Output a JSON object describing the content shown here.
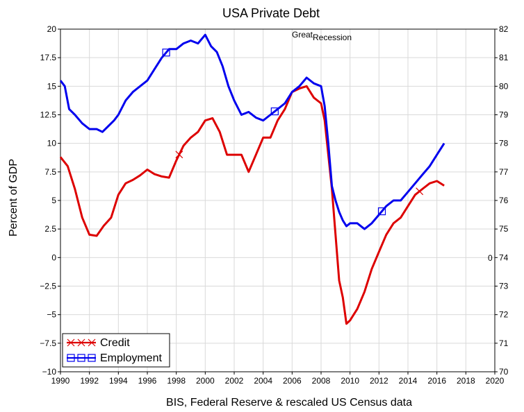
{
  "chart_data": {
    "type": "line",
    "title": "USA Private Debt",
    "ylabel": "Percent of GDP",
    "xlabel": "BIS, Federal Reserve & rescaled US Census data",
    "annotations": [
      "Great",
      "Recession",
      "0"
    ],
    "xlim": [
      1990,
      2020
    ],
    "ylim": [
      -10,
      20
    ],
    "y2lim": [
      70,
      82
    ],
    "x_ticks": [
      "1990",
      "1992",
      "1994",
      "1996",
      "1998",
      "2000",
      "2002",
      "2004",
      "2006",
      "2008",
      "2010",
      "2012",
      "2014",
      "2016",
      "2018",
      "2020"
    ],
    "y_ticks": [
      "20",
      "17.5",
      "15",
      "12.5",
      "10",
      "7.5",
      "5",
      "2.5",
      "0",
      "−2.5",
      "−5",
      "−7.5",
      "−10"
    ],
    "y2_ticks": [
      "82",
      "81",
      "80",
      "79",
      "78",
      "77",
      "76",
      "75",
      "74",
      "73",
      "72",
      "71",
      "70"
    ],
    "grid": true,
    "legend_position": "bottom-left",
    "series": [
      {
        "name": "Credit",
        "axis": "left",
        "color": "#dd0000",
        "marker": "x",
        "x": [
          1990.0,
          1990.5,
          1991.0,
          1991.5,
          1992.0,
          1992.5,
          1993.0,
          1993.5,
          1994.0,
          1994.5,
          1995.0,
          1995.5,
          1996.0,
          1996.5,
          1997.0,
          1997.5,
          1998.0,
          1998.5,
          1999.0,
          1999.5,
          2000.0,
          2000.5,
          2001.0,
          2001.5,
          2002.0,
          2002.5,
          2003.0,
          2003.5,
          2004.0,
          2004.5,
          2005.0,
          2005.5,
          2006.0,
          2006.5,
          2007.0,
          2007.5,
          2008.0,
          2008.25,
          2008.5,
          2008.75,
          2009.0,
          2009.25,
          2009.5,
          2009.75,
          2010.0,
          2010.5,
          2011.0,
          2011.5,
          2012.0,
          2012.5,
          2013.0,
          2013.5,
          2014.0,
          2014.5,
          2015.0,
          2015.5,
          2016.0,
          2016.5
        ],
        "values": [
          8.8,
          8.0,
          6.0,
          3.5,
          2.0,
          1.9,
          2.8,
          3.5,
          5.5,
          6.5,
          6.8,
          7.2,
          7.7,
          7.3,
          7.1,
          7.0,
          8.5,
          9.8,
          10.5,
          11.0,
          12.0,
          12.2,
          11.0,
          9.0,
          9.0,
          9.0,
          7.5,
          9.0,
          10.5,
          10.5,
          12.0,
          13.0,
          14.5,
          14.8,
          15.0,
          14.0,
          13.5,
          12.0,
          9.0,
          6.0,
          2.0,
          -2.0,
          -3.5,
          -5.8,
          -5.5,
          -4.5,
          -3.0,
          -1.0,
          0.5,
          2.0,
          3.0,
          3.5,
          4.5,
          5.5,
          6.0,
          6.5,
          6.7,
          6.3
        ],
        "marker_x": [
          1998.2,
          2014.8
        ]
      },
      {
        "name": "Employment",
        "axis": "right",
        "color": "#0000ee",
        "marker": "square",
        "x": [
          1990.0,
          1990.3,
          1990.6,
          1991.0,
          1991.5,
          1992.0,
          1992.5,
          1992.9,
          1993.3,
          1993.7,
          1994.0,
          1994.5,
          1995.0,
          1995.5,
          1996.0,
          1996.5,
          1997.0,
          1997.5,
          1998.0,
          1998.5,
          1999.0,
          1999.5,
          2000.0,
          2000.4,
          2000.8,
          2001.2,
          2001.6,
          2002.0,
          2002.5,
          2003.0,
          2003.5,
          2004.0,
          2004.5,
          2005.0,
          2005.5,
          2006.0,
          2006.5,
          2007.0,
          2007.5,
          2008.0,
          2008.25,
          2008.5,
          2008.75,
          2009.0,
          2009.25,
          2009.5,
          2009.75,
          2010.0,
          2010.5,
          2011.0,
          2011.5,
          2012.0,
          2012.5,
          2013.0,
          2013.5,
          2014.0,
          2014.5,
          2015.0,
          2015.5,
          2016.0,
          2016.5
        ],
        "values": [
          80.2,
          80.0,
          79.2,
          79.0,
          78.7,
          78.5,
          78.5,
          78.4,
          78.6,
          78.8,
          79.0,
          79.5,
          79.8,
          80.0,
          80.2,
          80.6,
          81.0,
          81.3,
          81.3,
          81.5,
          81.6,
          81.5,
          81.8,
          81.4,
          81.2,
          80.7,
          80.0,
          79.5,
          79.0,
          79.1,
          78.9,
          78.8,
          79.0,
          79.2,
          79.4,
          79.8,
          80.0,
          80.3,
          80.1,
          80.0,
          79.3,
          78.0,
          76.5,
          76.0,
          75.6,
          75.3,
          75.1,
          75.2,
          75.2,
          75.0,
          75.2,
          75.5,
          75.8,
          76.0,
          76.0,
          76.3,
          76.6,
          76.9,
          77.2,
          77.6,
          78.0
        ],
        "marker_x": [
          1997.3,
          2004.8,
          2012.2
        ]
      }
    ]
  }
}
